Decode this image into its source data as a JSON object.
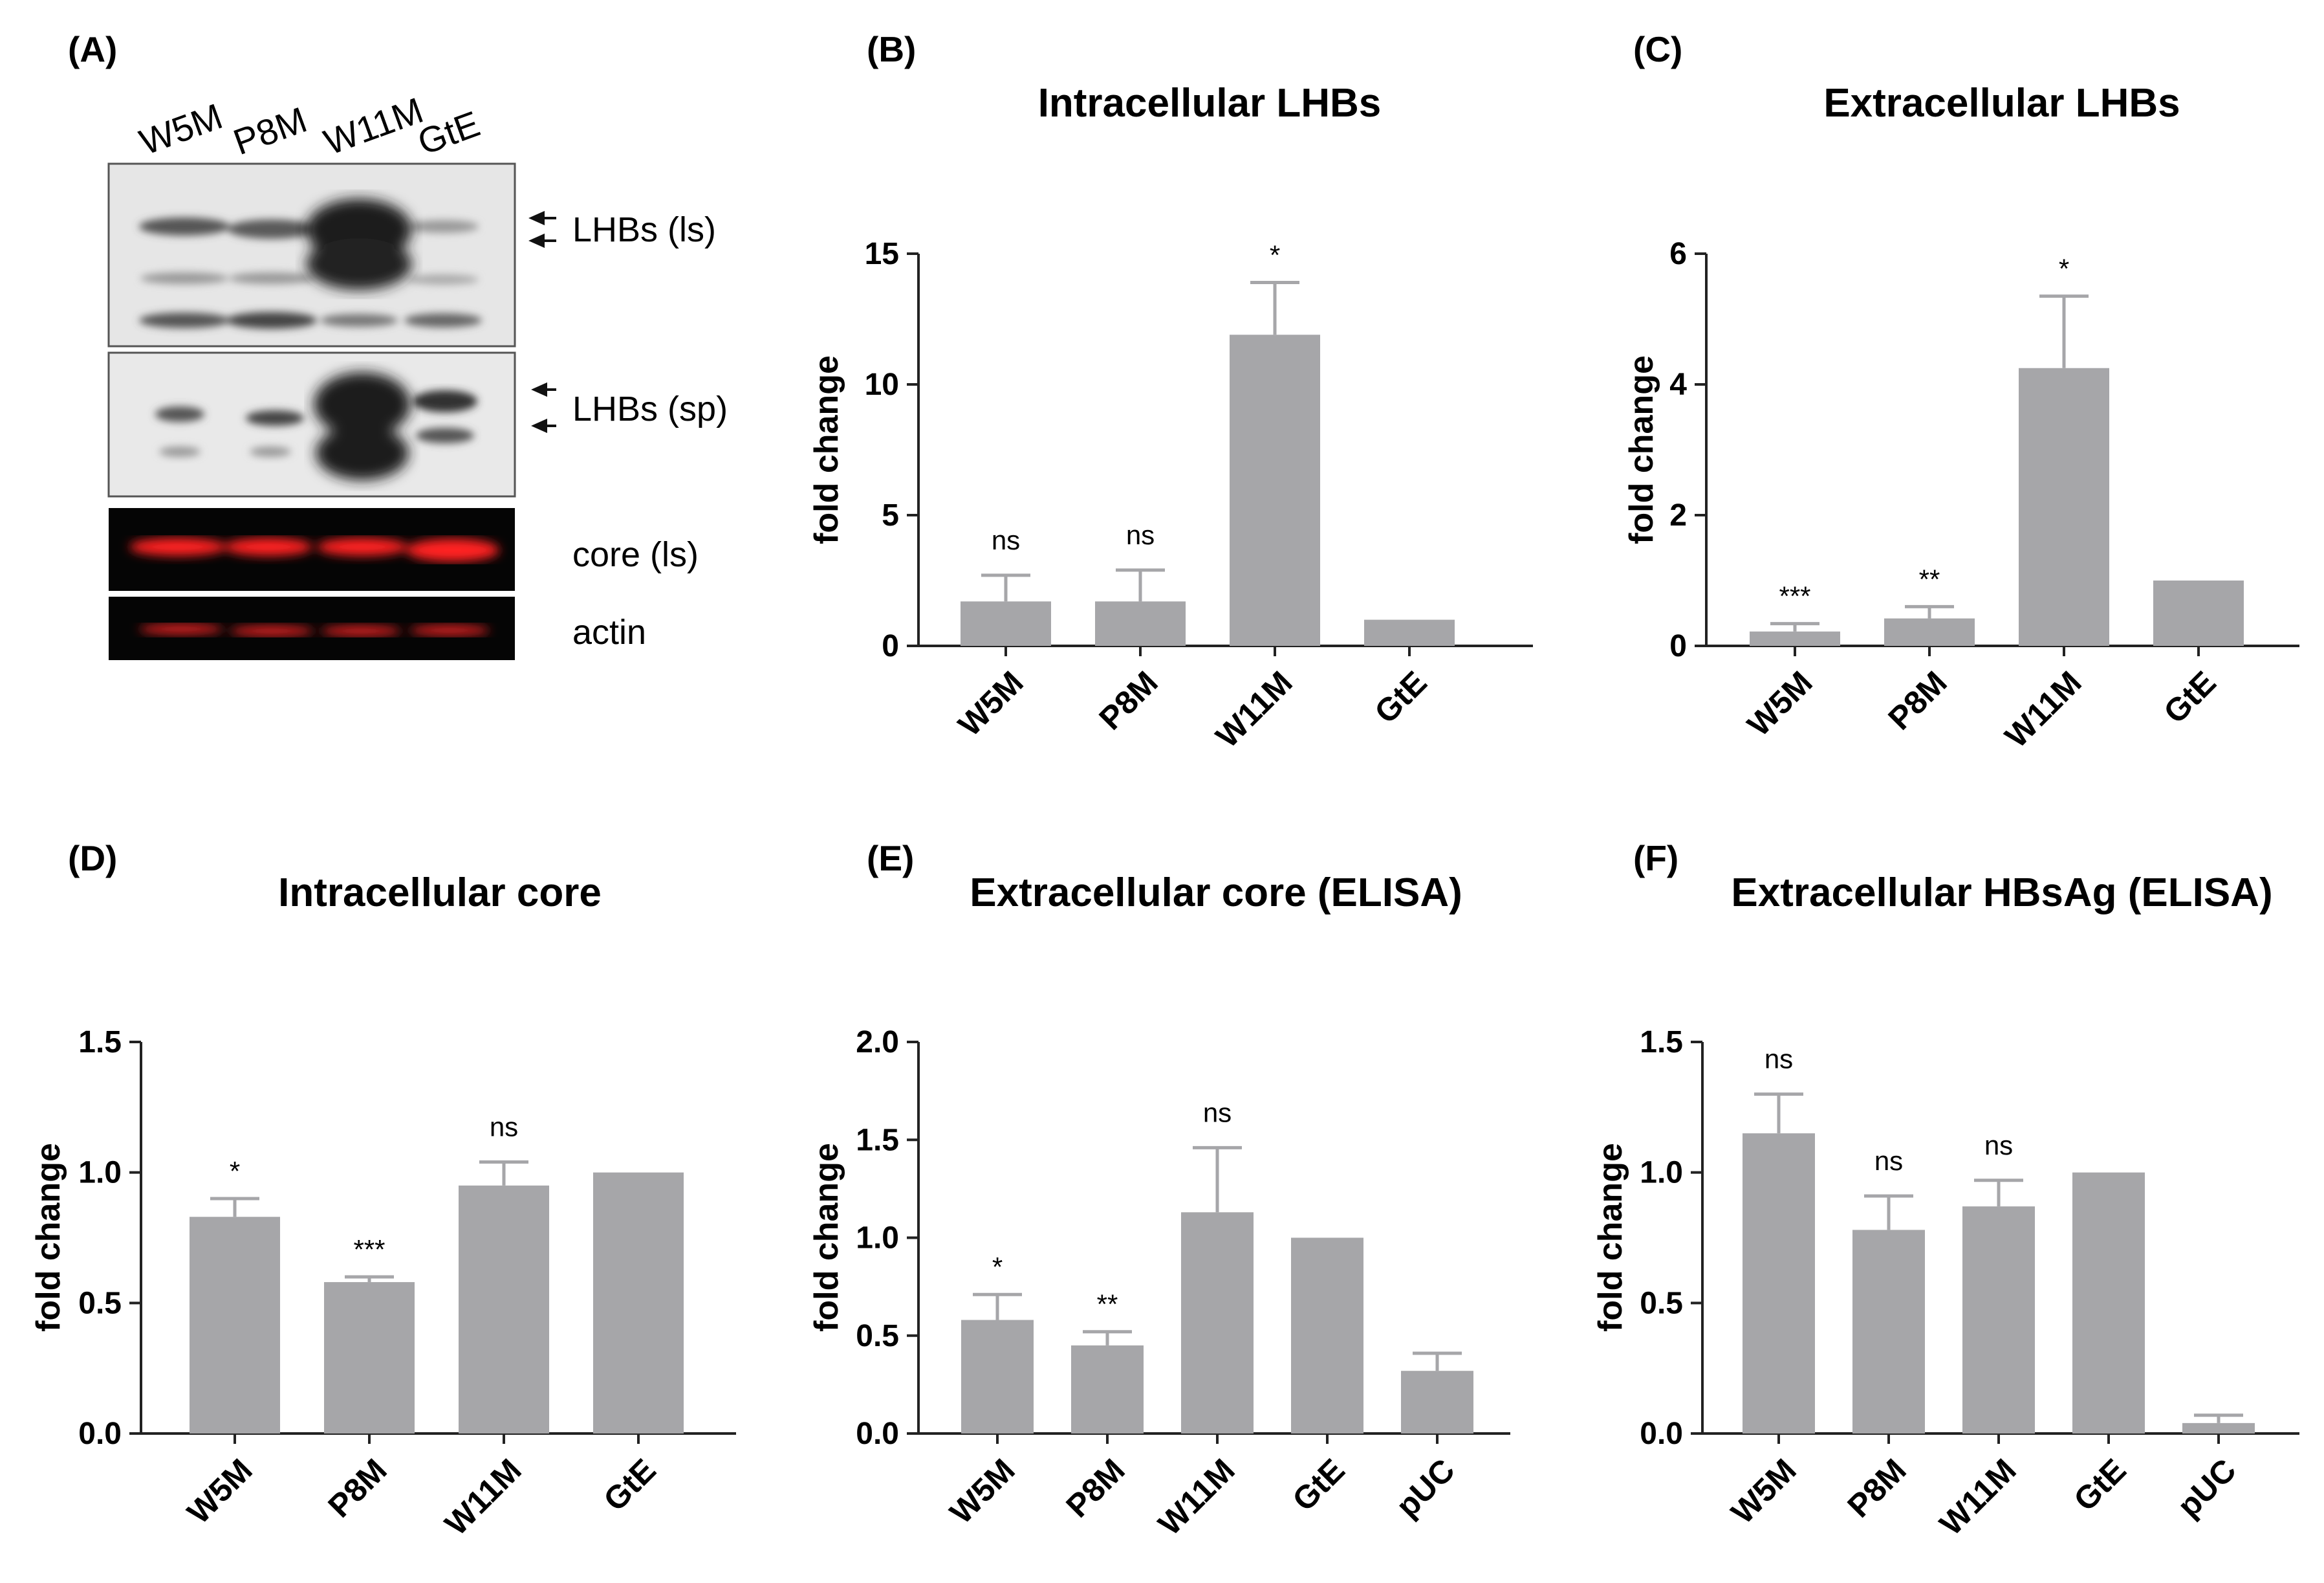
{
  "blot": {
    "panel": "(A)",
    "lanes": [
      "W5M",
      "P8M",
      "W11M",
      "GtE"
    ],
    "labels": [
      "LHBs (ls)",
      "LHBs (sp)",
      "core (ls)",
      "actin"
    ]
  },
  "colors": {
    "bar": "#a6a6a9",
    "axis": "#222222",
    "fluor": "#e8141c"
  },
  "chart_data": [
    {
      "panel": "(B)",
      "type": "bar",
      "title": "Intracellular LHBs",
      "ylabel": "fold change",
      "ylim": [
        0,
        15
      ],
      "yticks": [
        "0",
        "5",
        "10",
        "15"
      ],
      "ytick_values": [
        0,
        5,
        10,
        15
      ],
      "categories": [
        "W5M",
        "P8M",
        "W11M",
        "GtE"
      ],
      "values": [
        1.7,
        1.7,
        11.9,
        1.0
      ],
      "errors": [
        1.0,
        1.2,
        2.0,
        0
      ],
      "significance": [
        "ns",
        "ns",
        "*",
        ""
      ]
    },
    {
      "panel": "(C)",
      "type": "bar",
      "title": "Extracellular LHBs",
      "ylabel": "fold change",
      "ylim": [
        0,
        6
      ],
      "yticks": [
        "0",
        "2",
        "4",
        "6"
      ],
      "ytick_values": [
        0,
        2,
        4,
        6
      ],
      "categories": [
        "W5M",
        "P8M",
        "W11M",
        "GtE"
      ],
      "values": [
        0.22,
        0.42,
        4.25,
        1.0
      ],
      "errors": [
        0.12,
        0.18,
        1.1,
        0
      ],
      "significance": [
        "***",
        "**",
        "*",
        ""
      ]
    },
    {
      "panel": "(D)",
      "type": "bar",
      "title": "Intracellular core",
      "ylabel": "fold change",
      "ylim": [
        0,
        1.5
      ],
      "yticks": [
        "0.0",
        "0.5",
        "1.0",
        "1.5"
      ],
      "ytick_values": [
        0,
        0.5,
        1.0,
        1.5
      ],
      "categories": [
        "W5M",
        "P8M",
        "W11M",
        "GtE"
      ],
      "values": [
        0.83,
        0.58,
        0.95,
        1.0
      ],
      "errors": [
        0.07,
        0.02,
        0.09,
        0
      ],
      "significance": [
        "*",
        "***",
        "ns",
        ""
      ]
    },
    {
      "panel": "(E)",
      "type": "bar",
      "title": "Extracellular core (ELISA)",
      "ylabel": "fold change",
      "ylim": [
        0,
        2.0
      ],
      "yticks": [
        "0.0",
        "0.5",
        "1.0",
        "1.5",
        "2.0"
      ],
      "ytick_values": [
        0,
        0.5,
        1.0,
        1.5,
        2.0
      ],
      "categories": [
        "W5M",
        "P8M",
        "W11M",
        "GtE",
        "pUC"
      ],
      "values": [
        0.58,
        0.45,
        1.13,
        1.0,
        0.32
      ],
      "errors": [
        0.13,
        0.07,
        0.33,
        0,
        0.09
      ],
      "significance": [
        "*",
        "**",
        "ns",
        "",
        ""
      ]
    },
    {
      "panel": "(F)",
      "type": "bar",
      "title": "Extracellular HBsAg (ELISA)",
      "ylabel": "fold change",
      "ylim": [
        0,
        1.5
      ],
      "yticks": [
        "0.0",
        "0.5",
        "1.0",
        "1.5"
      ],
      "ytick_values": [
        0,
        0.5,
        1.0,
        1.5
      ],
      "categories": [
        "W5M",
        "P8M",
        "W11M",
        "GtE",
        "pUC"
      ],
      "values": [
        1.15,
        0.78,
        0.87,
        1.0,
        0.04
      ],
      "errors": [
        0.15,
        0.13,
        0.1,
        0,
        0.03
      ],
      "significance": [
        "ns",
        "ns",
        "ns",
        "",
        ""
      ]
    }
  ]
}
